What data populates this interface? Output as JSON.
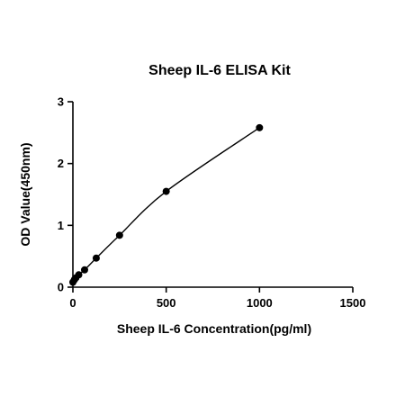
{
  "chart_data": {
    "type": "scatter",
    "title": "Sheep IL-6 ELISA Kit",
    "xlabel": "Sheep IL-6 Concentration(pg/ml)",
    "ylabel": "OD Value(450nm)",
    "xlim": [
      0,
      1500
    ],
    "ylim": [
      0,
      3
    ],
    "x_ticks": [
      0,
      500,
      1000,
      1500
    ],
    "y_ticks": [
      0,
      1,
      2,
      3
    ],
    "x_tick_labels": [
      "0",
      "500",
      "1000",
      "1500"
    ],
    "y_tick_labels": [
      "0",
      "1",
      "2",
      "3"
    ],
    "grid": false,
    "fit_curve": true,
    "series": [
      {
        "x": [
          0,
          7.8,
          15.6,
          31.25,
          62.5,
          125,
          250,
          500,
          1000
        ],
        "y": [
          0.08,
          0.12,
          0.15,
          0.2,
          0.28,
          0.47,
          0.84,
          1.55,
          2.58
        ]
      }
    ],
    "colors": {
      "marker": "#000000",
      "curve": "#000000",
      "axis": "#000000"
    }
  }
}
